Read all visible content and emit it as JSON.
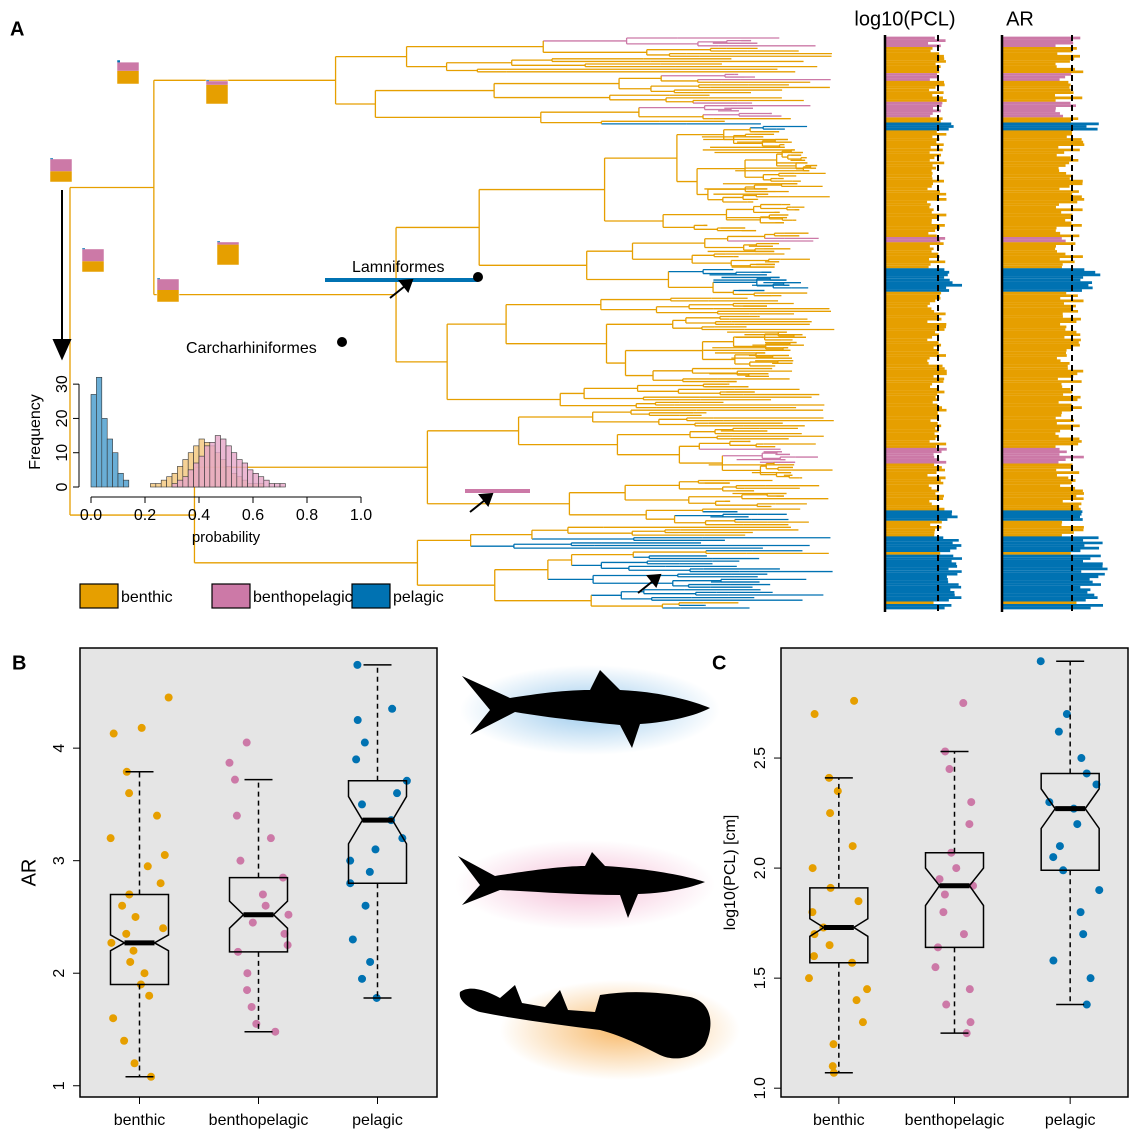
{
  "chart_data": [
    {
      "type": "tree",
      "panel_label": "A",
      "trait_titles": [
        "log10(PCL)",
        "AR"
      ],
      "clade_labels": [
        "Lamniformes",
        "Carcharhiniformes"
      ],
      "legend": [
        {
          "name": "benthic",
          "color": "#e69f00"
        },
        {
          "name": "benthopelagic",
          "color": "#cc79a7"
        },
        {
          "name": "pelagic",
          "color": "#0072b2"
        }
      ]
    },
    {
      "type": "histogram",
      "xlabel": "probability",
      "ylabel": "Frequency",
      "xlim": [
        0,
        1
      ],
      "xticks": [
        {
          "value": 0,
          "label": "0.0"
        },
        0.2,
        0.4,
        0.6,
        0.8,
        {
          "value": 1,
          "label": "1.0"
        }
      ],
      "ylim": [
        0,
        35
      ],
      "yticks": [
        0,
        10,
        20,
        30
      ],
      "series": [
        {
          "color": "#6aaed6",
          "bins": [
            0,
            0.02,
            0.04,
            0.06,
            0.08,
            0.1,
            0.12,
            0.14
          ],
          "values": [
            27,
            32,
            20,
            14,
            10,
            4,
            2
          ]
        },
        {
          "color": "#f3c57a",
          "bins": [
            0.22,
            0.24,
            0.26,
            0.28,
            0.3,
            0.32,
            0.34,
            0.36,
            0.38,
            0.4,
            0.42,
            0.44,
            0.46,
            0.48,
            0.5,
            0.52,
            0.54,
            0.56,
            0.58,
            0.6,
            0.62,
            0.64
          ],
          "values": [
            1,
            1,
            2,
            3,
            4,
            6,
            8,
            10,
            12,
            14,
            13,
            12,
            10,
            8,
            6,
            4,
            3,
            2,
            1,
            1,
            1
          ]
        },
        {
          "color": "#e6a6c8",
          "bins": [
            0.3,
            0.32,
            0.34,
            0.36,
            0.38,
            0.4,
            0.42,
            0.44,
            0.46,
            0.48,
            0.5,
            0.52,
            0.54,
            0.56,
            0.58,
            0.6,
            0.62,
            0.64,
            0.66,
            0.68,
            0.7,
            0.72
          ],
          "values": [
            1,
            2,
            3,
            5,
            7,
            9,
            12,
            13,
            15,
            14,
            12,
            10,
            8,
            7,
            5,
            4,
            3,
            2,
            1,
            1,
            1
          ]
        }
      ]
    },
    {
      "type": "box",
      "panel_label": "B",
      "ylabel": "AR",
      "categories": [
        "benthic",
        "benthopelagic",
        "pelagic"
      ],
      "colors": [
        "#e69f00",
        "#cc79a7",
        "#0072b2"
      ],
      "ylim": [
        0.9,
        4.89
      ],
      "yticks": [
        1,
        2,
        3,
        4
      ],
      "boxes": [
        {
          "whisker": [
            1.08,
            3.79
          ],
          "box": [
            1.9,
            2.7
          ],
          "median": 2.27,
          "notch": [
            2.2,
            2.34
          ],
          "points": [
            4.45,
            4.13,
            4.18,
            3.79,
            3.6,
            3.4,
            3.2,
            3.05,
            2.95,
            2.8,
            2.7,
            2.6,
            2.5,
            2.4,
            2.35,
            2.27,
            2.2,
            2.1,
            2.0,
            1.9,
            1.8,
            1.6,
            1.4,
            1.2,
            1.08
          ]
        },
        {
          "whisker": [
            1.48,
            3.72
          ],
          "box": [
            2.19,
            2.85
          ],
          "median": 2.52,
          "notch": [
            2.4,
            2.64
          ],
          "points": [
            4.05,
            3.87,
            3.72,
            3.4,
            3.2,
            3.0,
            2.85,
            2.7,
            2.6,
            2.52,
            2.45,
            2.35,
            2.25,
            2.19,
            2.0,
            1.85,
            1.7,
            1.55,
            1.48
          ]
        },
        {
          "whisker": [
            1.78,
            4.74
          ],
          "box": [
            2.8,
            3.71
          ],
          "median": 3.36,
          "notch": [
            3.15,
            3.57
          ],
          "points": [
            4.74,
            4.35,
            4.25,
            4.05,
            3.9,
            3.71,
            3.6,
            3.5,
            3.36,
            3.2,
            3.1,
            3.0,
            2.9,
            2.8,
            2.6,
            2.3,
            2.1,
            1.95,
            1.78
          ]
        }
      ]
    },
    {
      "type": "box",
      "panel_label": "C",
      "ylabel": "log10(PCL) [cm]",
      "categories": [
        "benthic",
        "benthopelagic",
        "pelagic"
      ],
      "colors": [
        "#e69f00",
        "#cc79a7",
        "#0072b2"
      ],
      "ylim": [
        0.96,
        3.0
      ],
      "yticks": [
        {
          "value": 1,
          "label": "1.0"
        },
        1.5,
        {
          "value": 2,
          "label": "2.0"
        },
        2.5
      ],
      "boxes": [
        {
          "whisker": [
            1.07,
            2.41
          ],
          "box": [
            1.57,
            1.91
          ],
          "median": 1.73,
          "notch": [
            1.69,
            1.77
          ],
          "points": [
            2.76,
            2.7,
            2.41,
            2.35,
            2.25,
            2.1,
            2.0,
            1.91,
            1.85,
            1.8,
            1.73,
            1.7,
            1.65,
            1.6,
            1.57,
            1.5,
            1.45,
            1.4,
            1.3,
            1.2,
            1.1,
            1.07
          ]
        },
        {
          "whisker": [
            1.25,
            2.53
          ],
          "box": [
            1.64,
            2.07
          ],
          "median": 1.92,
          "notch": [
            1.83,
            2.0
          ],
          "points": [
            2.75,
            2.53,
            2.45,
            2.3,
            2.2,
            2.07,
            2.0,
            1.95,
            1.92,
            1.88,
            1.8,
            1.7,
            1.64,
            1.55,
            1.45,
            1.38,
            1.3,
            1.25
          ]
        },
        {
          "whisker": [
            1.38,
            2.94
          ],
          "box": [
            1.99,
            2.43
          ],
          "median": 2.27,
          "notch": [
            2.18,
            2.36
          ],
          "points": [
            2.94,
            2.7,
            2.62,
            2.5,
            2.43,
            2.38,
            2.3,
            2.27,
            2.2,
            2.1,
            2.05,
            1.99,
            1.9,
            1.8,
            1.7,
            1.58,
            1.5,
            1.38
          ]
        }
      ]
    }
  ]
}
